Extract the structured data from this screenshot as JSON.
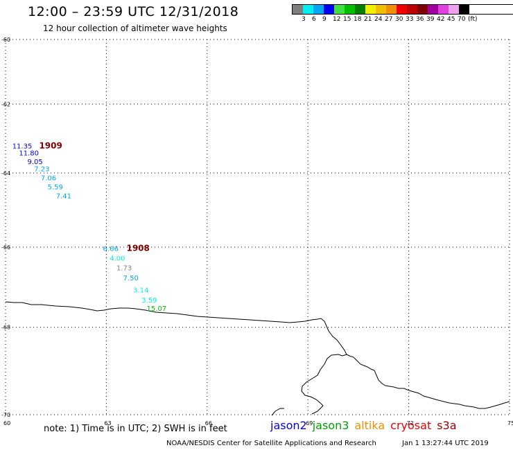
{
  "header": {
    "title": "12:00 – 23:59 UTC 12/31/2018",
    "subtitle": "12 hour collection of altimeter wave heights"
  },
  "legend": {
    "colors": [
      "#7f7f7f",
      "#00f0f0",
      "#00a8f0",
      "#0000f0",
      "#40e040",
      "#00c000",
      "#008000",
      "#f0f000",
      "#f0c000",
      "#f09000",
      "#f00000",
      "#c00000",
      "#800000",
      "#a000a0",
      "#e040e0",
      "#f0a0f0",
      "#000000"
    ],
    "labels": [
      "3",
      "6",
      "9",
      "12",
      "15",
      "18",
      "21",
      "24",
      "27",
      "30",
      "33",
      "36",
      "39",
      "42",
      "45",
      "70",
      "(ft)"
    ]
  },
  "map": {
    "lat_labels": [
      "-60",
      "-62",
      "-64",
      "-66",
      "-68",
      "-70"
    ],
    "lon_labels": [
      "60",
      "63",
      "66",
      "69",
      "72",
      "75"
    ],
    "lat_range": [
      -70,
      -60
    ],
    "lon_range": [
      60,
      75
    ],
    "grid": "dotted",
    "track_labels": [
      {
        "text": "1909",
        "lon": 61.0,
        "lat": -63.3,
        "color": "#800000"
      },
      {
        "text": "1908",
        "lon": 63.6,
        "lat": -66.1,
        "color": "#800000"
      }
    ],
    "observations": [
      {
        "value": "11.35",
        "lon": 60.2,
        "lat": -63.3,
        "color": "#0000f0"
      },
      {
        "value": "11.80",
        "lon": 60.4,
        "lat": -63.5,
        "color": "#0000f0"
      },
      {
        "value": "9.05",
        "lon": 60.65,
        "lat": -63.75,
        "color": "#0000f0"
      },
      {
        "value": "7.23",
        "lon": 60.85,
        "lat": -63.95,
        "color": "#00a8f0"
      },
      {
        "value": "7.06",
        "lon": 61.05,
        "lat": -64.2,
        "color": "#00a8f0"
      },
      {
        "value": "5.59",
        "lon": 61.25,
        "lat": -64.45,
        "color": "#00a8f0"
      },
      {
        "value": "7.41",
        "lon": 61.5,
        "lat": -64.7,
        "color": "#00a8f0"
      },
      {
        "value": "6.66",
        "lon": 62.9,
        "lat": -66.1,
        "color": "#00a8f0"
      },
      {
        "value": "4.00",
        "lon": 63.1,
        "lat": -66.35,
        "color": "#00f0f0"
      },
      {
        "value": "1.73",
        "lon": 63.3,
        "lat": -66.6,
        "color": "#7f7f7f"
      },
      {
        "value": "7.50",
        "lon": 63.5,
        "lat": -66.85,
        "color": "#00a8f0"
      },
      {
        "value": "3.14",
        "lon": 63.8,
        "lat": -67.15,
        "color": "#00f0f0"
      },
      {
        "value": "3.59",
        "lon": 64.05,
        "lat": -67.4,
        "color": "#00f0f0"
      },
      {
        "value": "15.07",
        "lon": 64.2,
        "lat": -67.6,
        "color": "#00c000"
      }
    ]
  },
  "footer": {
    "note": "note:  1) Time is in UTC;  2) SWH is in feet",
    "satellites": [
      {
        "name": "jason2",
        "color": "#0000f0"
      },
      {
        "name": "jason3",
        "color": "#00a000"
      },
      {
        "name": "altika",
        "color": "#f09000"
      },
      {
        "name": "cryosat",
        "color": "#f00000"
      },
      {
        "name": "s3a",
        "color": "#a00000"
      }
    ],
    "credit": "NOAA/NESDIS Center for Satellite Applications and Research",
    "timestamp": "Jan  1 13:27:44 UTC 2019"
  }
}
